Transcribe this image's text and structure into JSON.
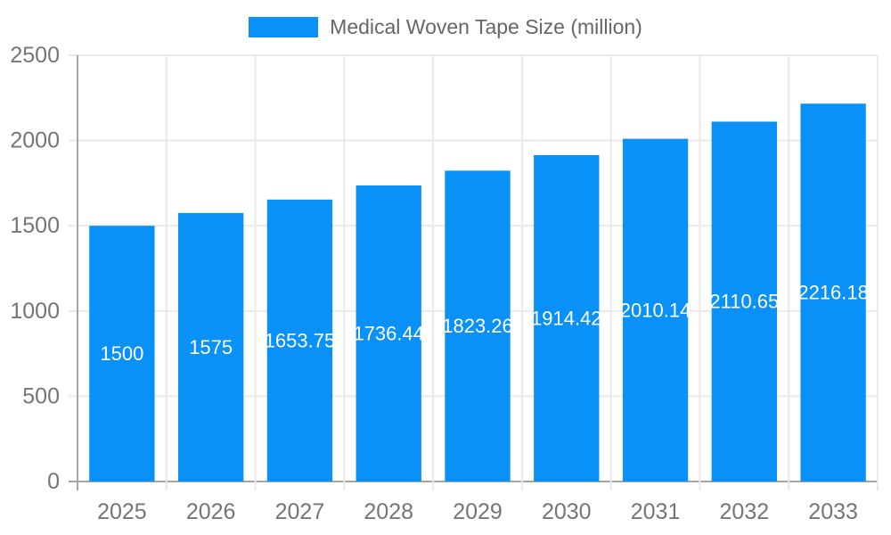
{
  "chart_data": {
    "type": "bar",
    "title": "Medical Woven Tape Size (million)",
    "legend_position": "top",
    "categories": [
      "2025",
      "2026",
      "2027",
      "2028",
      "2029",
      "2030",
      "2031",
      "2032",
      "2033"
    ],
    "values": [
      1500,
      1575,
      1653.75,
      1736.44,
      1823.26,
      1914.42,
      2010.14,
      2110.65,
      2216.18
    ],
    "value_labels": [
      "1500",
      "1575",
      "1653.75",
      "1736.44",
      "1823.26",
      "1914.42",
      "2010.14",
      "2110.65",
      "2216.18"
    ],
    "xlabel": "",
    "ylabel": "",
    "ylim": [
      0,
      2500
    ],
    "yticks": [
      0,
      500,
      1000,
      1500,
      2000,
      2500
    ],
    "ytick_labels": [
      "0",
      "500",
      "1000",
      "1500",
      "2000",
      "2500"
    ],
    "grid": true,
    "colors": {
      "bar": "#0991f8",
      "axis_text": "#757575",
      "legend_text": "#666666",
      "gridline": "#e9e9e9",
      "zero_line": "#a6a6a6",
      "value_label": "#ffffff",
      "background": "#ffffff"
    }
  }
}
